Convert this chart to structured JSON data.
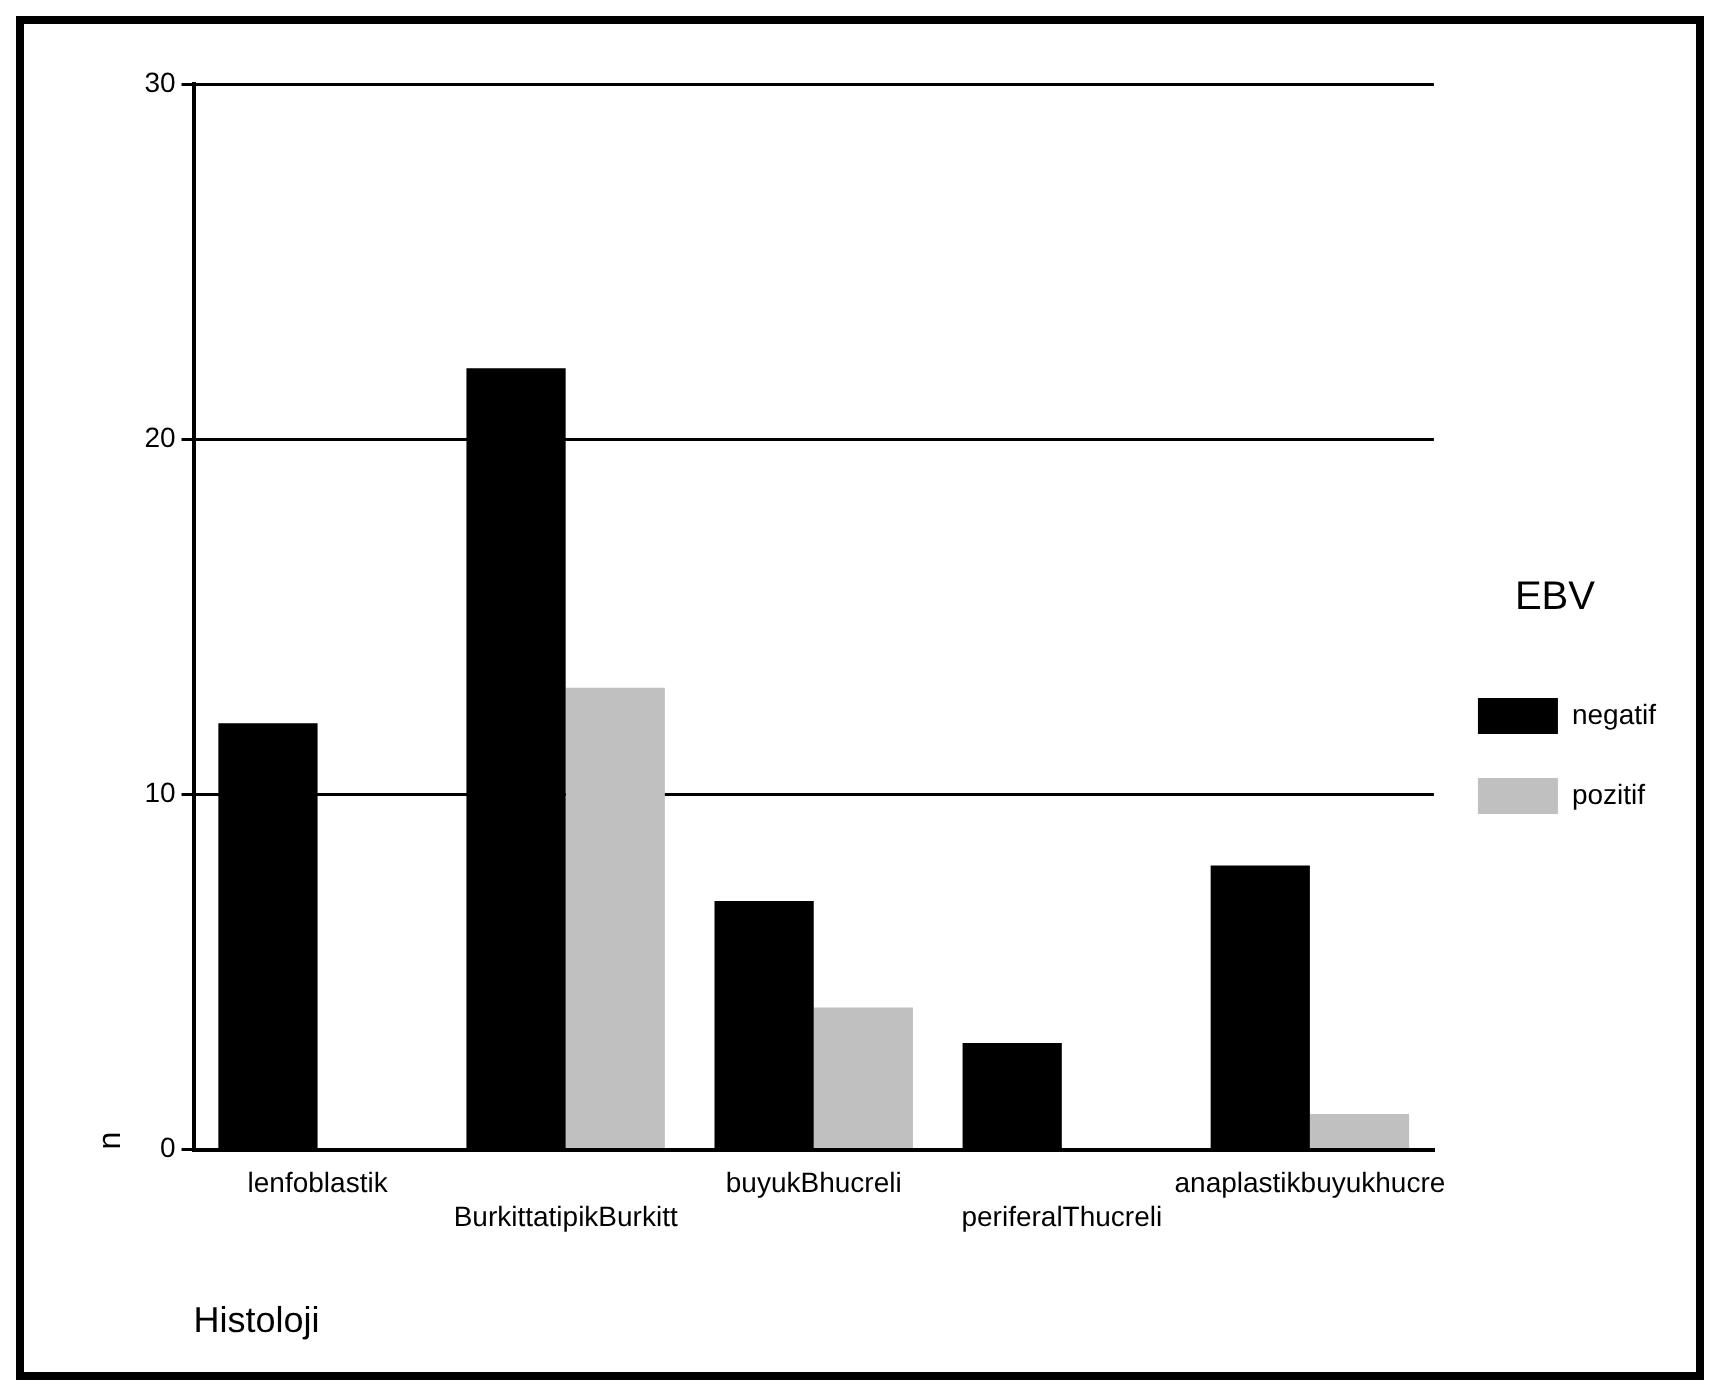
{
  "chart_data": {
    "type": "bar",
    "xlabel": "Histoloji",
    "ylabel": "n",
    "legend_title": "EBV",
    "categories": [
      "lenfoblastik",
      "BurkittatipikBurkitt",
      "buyukBhucreli",
      "periferalThucreli",
      "anaplastikbuyukhucre"
    ],
    "series": [
      {
        "name": "negatif",
        "color": "#000000",
        "values": [
          12,
          22,
          7,
          3,
          8
        ]
      },
      {
        "name": "pozitif",
        "color": "#c0c0c0",
        "values": [
          0,
          13,
          4,
          0,
          1
        ]
      }
    ],
    "ylim": [
      0,
      30
    ],
    "yticks": [
      0,
      10,
      20,
      30
    ],
    "grid": "y",
    "legend": "right"
  }
}
